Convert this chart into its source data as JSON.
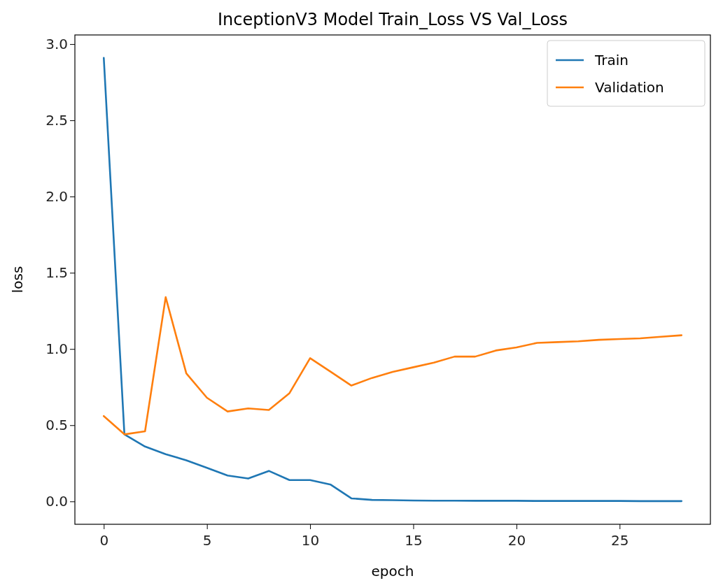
{
  "chart_data": {
    "type": "line",
    "title": "InceptionV3 Model Train_Loss VS Val_Loss",
    "xlabel": "epoch",
    "ylabel": "loss",
    "x": [
      0,
      1,
      2,
      3,
      4,
      5,
      6,
      7,
      8,
      9,
      10,
      11,
      12,
      13,
      14,
      15,
      16,
      17,
      18,
      19,
      20,
      21,
      22,
      23,
      24,
      25,
      26,
      27,
      28
    ],
    "series": [
      {
        "name": "Train",
        "color": "#1f77b4",
        "values": [
          2.91,
          0.44,
          0.36,
          0.31,
          0.27,
          0.22,
          0.17,
          0.15,
          0.2,
          0.14,
          0.14,
          0.11,
          0.02,
          0.01,
          0.008,
          0.006,
          0.005,
          0.005,
          0.004,
          0.004,
          0.004,
          0.003,
          0.003,
          0.003,
          0.003,
          0.003,
          0.002,
          0.002,
          0.002
        ]
      },
      {
        "name": "Validation",
        "color": "#ff7f0e",
        "values": [
          0.56,
          0.44,
          0.46,
          1.34,
          0.84,
          0.68,
          0.59,
          0.61,
          0.6,
          0.71,
          0.94,
          0.85,
          0.76,
          0.81,
          0.85,
          0.88,
          0.91,
          0.95,
          0.95,
          0.99,
          1.01,
          1.04,
          1.045,
          1.05,
          1.06,
          1.065,
          1.07,
          1.08,
          1.09
        ]
      }
    ],
    "xlim": [
      -1.4,
      29.4
    ],
    "ylim": [
      -0.15,
      3.06
    ],
    "xticks": [
      0,
      5,
      10,
      15,
      20,
      25
    ],
    "yticks": [
      {
        "value": 0,
        "label": "0.0"
      },
      {
        "value": 0.5,
        "label": "0.5"
      },
      {
        "value": 1,
        "label": "1.0"
      },
      {
        "value": 1.5,
        "label": "1.5"
      },
      {
        "value": 2,
        "label": "2.0"
      },
      {
        "value": 2.5,
        "label": "2.5"
      },
      {
        "value": 3,
        "label": "3.0"
      }
    ],
    "legend": "top right",
    "line_style": "solid"
  }
}
